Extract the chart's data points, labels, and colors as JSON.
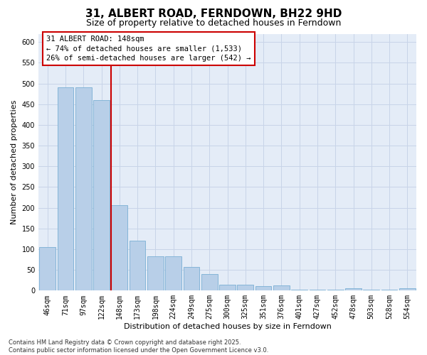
{
  "title": "31, ALBERT ROAD, FERNDOWN, BH22 9HD",
  "subtitle": "Size of property relative to detached houses in Ferndown",
  "xlabel": "Distribution of detached houses by size in Ferndown",
  "ylabel": "Number of detached properties",
  "categories": [
    "46sqm",
    "71sqm",
    "97sqm",
    "122sqm",
    "148sqm",
    "173sqm",
    "198sqm",
    "224sqm",
    "249sqm",
    "275sqm",
    "300sqm",
    "325sqm",
    "351sqm",
    "376sqm",
    "401sqm",
    "427sqm",
    "452sqm",
    "478sqm",
    "503sqm",
    "528sqm",
    "554sqm"
  ],
  "values": [
    105,
    490,
    490,
    460,
    207,
    120,
    82,
    82,
    57,
    40,
    15,
    15,
    10,
    12,
    2,
    2,
    2,
    5,
    2,
    2,
    5
  ],
  "bar_color": "#b8cfe8",
  "bar_edge_color": "#7aafd4",
  "vline_x_index": 4,
  "vline_color": "#cc0000",
  "annotation_line1": "31 ALBERT ROAD: 148sqm",
  "annotation_line2": "← 74% of detached houses are smaller (1,533)",
  "annotation_line3": "26% of semi-detached houses are larger (542) →",
  "annotation_box_color": "#ffffff",
  "annotation_box_edge_color": "#cc0000",
  "ylim": [
    0,
    620
  ],
  "yticks": [
    0,
    50,
    100,
    150,
    200,
    250,
    300,
    350,
    400,
    450,
    500,
    550,
    600
  ],
  "grid_color": "#c8d4e8",
  "background_color": "#e4ecf7",
  "footnote_line1": "Contains HM Land Registry data © Crown copyright and database right 2025.",
  "footnote_line2": "Contains public sector information licensed under the Open Government Licence v3.0.",
  "title_fontsize": 11,
  "subtitle_fontsize": 9,
  "axis_label_fontsize": 8,
  "tick_fontsize": 7,
  "annotation_fontsize": 7.5,
  "footnote_fontsize": 6
}
